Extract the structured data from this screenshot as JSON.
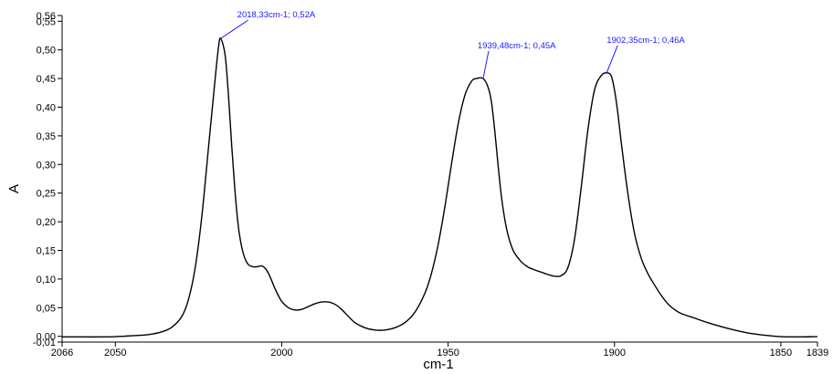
{
  "chart_data": {
    "type": "line",
    "title": "",
    "xlabel": "cm-1",
    "ylabel": "A",
    "xlim": [
      2066,
      1839
    ],
    "ylim": [
      -0.01,
      0.56
    ],
    "x_reversed": true,
    "grid": false,
    "legend": "none",
    "x_ticks": [
      {
        "value": 2066,
        "label": "2066"
      },
      {
        "value": 2050,
        "label": "2050"
      },
      {
        "value": 2000,
        "label": "2000"
      },
      {
        "value": 1950,
        "label": "1950"
      },
      {
        "value": 1900,
        "label": "1900"
      },
      {
        "value": 1850,
        "label": "1850"
      },
      {
        "value": 1839,
        "label": "1839"
      }
    ],
    "y_ticks": [
      {
        "value": -0.01,
        "label": "-0,01"
      },
      {
        "value": 0.0,
        "label": "0,00"
      },
      {
        "value": 0.05,
        "label": "0,05"
      },
      {
        "value": 0.1,
        "label": "0,10"
      },
      {
        "value": 0.15,
        "label": "0,15"
      },
      {
        "value": 0.2,
        "label": "0,20"
      },
      {
        "value": 0.25,
        "label": "0,25"
      },
      {
        "value": 0.3,
        "label": "0,30"
      },
      {
        "value": 0.35,
        "label": "0,35"
      },
      {
        "value": 0.4,
        "label": "0,40"
      },
      {
        "value": 0.45,
        "label": "0,45"
      },
      {
        "value": 0.5,
        "label": "0,50"
      },
      {
        "value": 0.55,
        "label": "0,55"
      },
      {
        "value": 0.56,
        "label": "0,56"
      }
    ],
    "series": [
      {
        "color": "#000000",
        "points": [
          [
            2066,
            -0.001
          ],
          [
            2060,
            -0.001
          ],
          [
            2055,
            -0.001
          ],
          [
            2050,
            -0.0005
          ],
          [
            2045,
            0.001
          ],
          [
            2040,
            0.003
          ],
          [
            2036,
            0.008
          ],
          [
            2033,
            0.016
          ],
          [
            2030,
            0.035
          ],
          [
            2028,
            0.065
          ],
          [
            2026,
            0.12
          ],
          [
            2024,
            0.21
          ],
          [
            2022,
            0.33
          ],
          [
            2020,
            0.45
          ],
          [
            2019,
            0.505
          ],
          [
            2018.33,
            0.52
          ],
          [
            2017,
            0.49
          ],
          [
            2016,
            0.42
          ],
          [
            2015,
            0.33
          ],
          [
            2014,
            0.25
          ],
          [
            2013,
            0.19
          ],
          [
            2012,
            0.155
          ],
          [
            2011,
            0.135
          ],
          [
            2010,
            0.125
          ],
          [
            2009,
            0.122
          ],
          [
            2008,
            0.121
          ],
          [
            2007,
            0.122
          ],
          [
            2006,
            0.123
          ],
          [
            2005,
            0.119
          ],
          [
            2004,
            0.11
          ],
          [
            2003,
            0.097
          ],
          [
            2002,
            0.083
          ],
          [
            2001,
            0.071
          ],
          [
            2000,
            0.061
          ],
          [
            1998,
            0.05
          ],
          [
            1996,
            0.046
          ],
          [
            1994,
            0.047
          ],
          [
            1992,
            0.052
          ],
          [
            1990,
            0.057
          ],
          [
            1988,
            0.06
          ],
          [
            1986,
            0.06
          ],
          [
            1984,
            0.056
          ],
          [
            1982,
            0.047
          ],
          [
            1980,
            0.035
          ],
          [
            1978,
            0.024
          ],
          [
            1975,
            0.015
          ],
          [
            1972,
            0.011
          ],
          [
            1969,
            0.011
          ],
          [
            1966,
            0.015
          ],
          [
            1963,
            0.024
          ],
          [
            1960,
            0.042
          ],
          [
            1957,
            0.075
          ],
          [
            1955,
            0.11
          ],
          [
            1953,
            0.16
          ],
          [
            1951,
            0.225
          ],
          [
            1949,
            0.3
          ],
          [
            1947,
            0.37
          ],
          [
            1945,
            0.42
          ],
          [
            1943,
            0.445
          ],
          [
            1941.5,
            0.45
          ],
          [
            1939.48,
            0.45
          ],
          [
            1938,
            0.435
          ],
          [
            1937,
            0.41
          ],
          [
            1936,
            0.36
          ],
          [
            1935,
            0.3
          ],
          [
            1934,
            0.245
          ],
          [
            1933,
            0.205
          ],
          [
            1932,
            0.177
          ],
          [
            1931,
            0.158
          ],
          [
            1930,
            0.145
          ],
          [
            1928,
            0.13
          ],
          [
            1926,
            0.121
          ],
          [
            1924,
            0.116
          ],
          [
            1922,
            0.112
          ],
          [
            1920,
            0.108
          ],
          [
            1918,
            0.105
          ],
          [
            1916,
            0.106
          ],
          [
            1914,
            0.12
          ],
          [
            1912,
            0.17
          ],
          [
            1910,
            0.26
          ],
          [
            1908,
            0.36
          ],
          [
            1906,
            0.43
          ],
          [
            1904,
            0.455
          ],
          [
            1902.35,
            0.46
          ],
          [
            1901,
            0.455
          ],
          [
            1900,
            0.43
          ],
          [
            1899,
            0.39
          ],
          [
            1898,
            0.34
          ],
          [
            1896,
            0.25
          ],
          [
            1894,
            0.18
          ],
          [
            1892,
            0.137
          ],
          [
            1890,
            0.11
          ],
          [
            1888,
            0.09
          ],
          [
            1886,
            0.072
          ],
          [
            1884,
            0.057
          ],
          [
            1882,
            0.047
          ],
          [
            1880,
            0.04
          ],
          [
            1876,
            0.032
          ],
          [
            1872,
            0.024
          ],
          [
            1866,
            0.014
          ],
          [
            1860,
            0.006
          ],
          [
            1855,
            0.002
          ],
          [
            1850,
            -0.0005
          ],
          [
            1845,
            -0.001
          ],
          [
            1839,
            -0.0005
          ]
        ]
      }
    ],
    "annotations": [
      {
        "text": "2018,33cm-1; 0,52A",
        "x": 2018.33,
        "y": 0.52
      },
      {
        "text": "1939,48cm-1; 0,45A",
        "x": 1939.48,
        "y": 0.45
      },
      {
        "text": "1902,35cm-1; 0,46A",
        "x": 1902.35,
        "y": 0.46
      }
    ]
  }
}
